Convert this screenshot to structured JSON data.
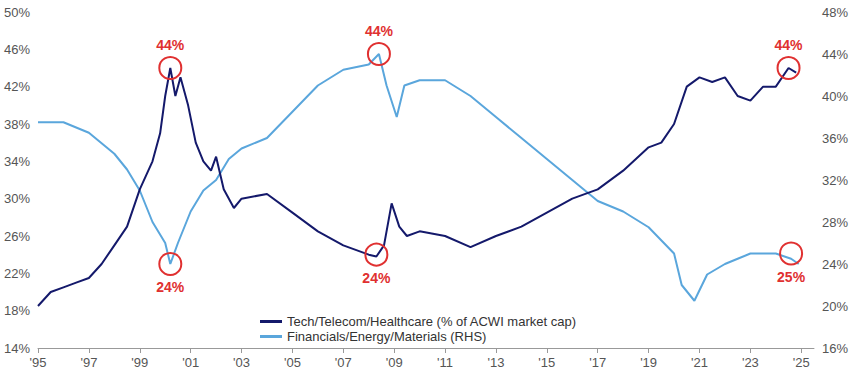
{
  "chart_data": {
    "type": "line",
    "xlim": [
      1995,
      2025.5
    ],
    "xticks": [
      {
        "value": 1995,
        "label": "'95"
      },
      {
        "value": 1997,
        "label": "'97"
      },
      {
        "value": 1999,
        "label": "'99"
      },
      {
        "value": 2001,
        "label": "'01"
      },
      {
        "value": 2003,
        "label": "'03"
      },
      {
        "value": 2005,
        "label": "'05"
      },
      {
        "value": 2007,
        "label": "'07"
      },
      {
        "value": 2009,
        "label": "'09"
      },
      {
        "value": 2011,
        "label": "'11"
      },
      {
        "value": 2013,
        "label": "'13"
      },
      {
        "value": 2015,
        "label": "'15"
      },
      {
        "value": 2017,
        "label": "'17"
      },
      {
        "value": 2019,
        "label": "'19"
      },
      {
        "value": 2021,
        "label": "'21"
      },
      {
        "value": 2023,
        "label": "'23"
      },
      {
        "value": 2025,
        "label": "'25"
      }
    ],
    "ylim": [
      14,
      50
    ],
    "yticks": [
      {
        "value": 14,
        "label": "14%"
      },
      {
        "value": 18,
        "label": "18%"
      },
      {
        "value": 22,
        "label": "22%"
      },
      {
        "value": 26,
        "label": "26%"
      },
      {
        "value": 30,
        "label": "30%"
      },
      {
        "value": 34,
        "label": "34%"
      },
      {
        "value": 38,
        "label": "38%"
      },
      {
        "value": 42,
        "label": "42%"
      },
      {
        "value": 46,
        "label": "46%"
      },
      {
        "value": 50,
        "label": "50%"
      }
    ],
    "y2lim": [
      16,
      48
    ],
    "y2ticks": [
      {
        "value": 16,
        "label": "16%"
      },
      {
        "value": 20,
        "label": "20%"
      },
      {
        "value": 24,
        "label": "24%"
      },
      {
        "value": 28,
        "label": "28%"
      },
      {
        "value": 32,
        "label": "32%"
      },
      {
        "value": 36,
        "label": "36%"
      },
      {
        "value": 40,
        "label": "40%"
      },
      {
        "value": 44,
        "label": "44%"
      },
      {
        "value": 48,
        "label": "48%"
      }
    ],
    "grid": false,
    "legend": "bottom",
    "series": [
      {
        "name": "Tech/Telecom/Healthcare (% of ACWI market cap)",
        "color": "#14196b",
        "axis": "y",
        "line_style": "solid",
        "x": [
          1995,
          1995.5,
          1996,
          1996.5,
          1997,
          1997.5,
          1998,
          1998.5,
          1999,
          1999.5,
          1999.8,
          2000,
          2000.2,
          2000.4,
          2000.6,
          2000.9,
          2001.2,
          2001.5,
          2001.8,
          2002,
          2002.3,
          2002.7,
          2003,
          2004,
          2005,
          2006,
          2007,
          2008,
          2008.3,
          2008.6,
          2008.9,
          2009.2,
          2009.5,
          2010,
          2011,
          2012,
          2013,
          2014,
          2015,
          2016,
          2017,
          2018,
          2019,
          2019.5,
          2020,
          2020.5,
          2021,
          2021.5,
          2022,
          2022.5,
          2023,
          2023.5,
          2024,
          2024.5,
          2024.8
        ],
        "values": [
          18.5,
          20,
          20.5,
          21,
          21.5,
          23,
          25,
          27,
          31,
          34,
          37,
          41,
          44,
          41,
          43,
          40,
          36,
          34,
          33,
          34.5,
          31,
          29,
          30,
          30.5,
          28.5,
          26.5,
          25,
          24,
          23.8,
          25,
          29.5,
          27,
          26,
          26.5,
          26,
          24.8,
          26,
          27,
          28.5,
          30,
          31,
          33,
          35.5,
          36,
          38,
          42,
          43,
          42.5,
          43,
          41,
          40.5,
          42,
          42,
          44,
          43.5
        ]
      },
      {
        "name": "Financials/Energy/Materials (RHS)",
        "color": "#5aa6dc",
        "axis": "y2",
        "line_style": "solid",
        "x": [
          1995,
          1996,
          1997,
          1998,
          1998.5,
          1999,
          1999.5,
          2000,
          2000.2,
          2000.5,
          2001,
          2001.5,
          2002,
          2002.5,
          2003,
          2004,
          2005,
          2006,
          2007,
          2008,
          2008.4,
          2008.7,
          2009.1,
          2009.4,
          2010,
          2011,
          2012,
          2013,
          2014,
          2015,
          2016,
          2016.5,
          2017,
          2018,
          2019,
          2020,
          2020.3,
          2020.8,
          2021.3,
          2022,
          2022.5,
          2023,
          2024,
          2024.6,
          2024.9
        ],
        "values": [
          37.5,
          37.5,
          36.5,
          34.5,
          33,
          31,
          28,
          26,
          24,
          26,
          29,
          31,
          32,
          34,
          35,
          36,
          38.5,
          41,
          42.5,
          43,
          44,
          41,
          38,
          41,
          41.5,
          41.5,
          40,
          38,
          36,
          34,
          32,
          31,
          30,
          29,
          27.5,
          25,
          22,
          20.5,
          23,
          24,
          24.5,
          25,
          25,
          24.5,
          24
        ]
      }
    ],
    "annotations": [
      {
        "text": "44%",
        "x": 2000.2,
        "y": 44,
        "axis": "y"
      },
      {
        "text": "24%",
        "x": 2000.2,
        "y": 24,
        "axis": "y2"
      },
      {
        "text": "44%",
        "x": 2008.4,
        "y": 44,
        "axis": "y2"
      },
      {
        "text": "24%",
        "x": 2008.3,
        "y": 24,
        "axis": "y"
      },
      {
        "text": "44%",
        "x": 2024.5,
        "y": 44,
        "axis": "y"
      },
      {
        "text": "25%",
        "x": 2024.6,
        "y": 25,
        "axis": "y2"
      }
    ]
  }
}
